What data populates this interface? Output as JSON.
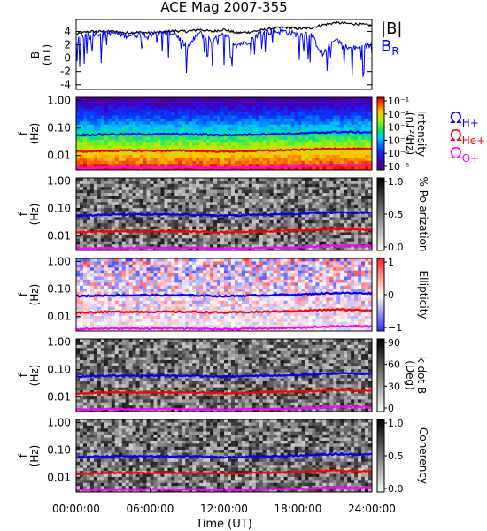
{
  "title": "ACE Mag 2007-355",
  "colors": {
    "B_total": "#000000",
    "B_R": "#0000ff",
    "cyclotron_H": "#0000ff",
    "cyclotron_He": "#ff0000",
    "cyclotron_O": "#ff00ff",
    "panel_border": "#000000"
  },
  "time_axis": {
    "label": "Time (UT)",
    "ticks": [
      "00:00:00",
      "06:00:00",
      "12:00:00",
      "18:00:00",
      "24:00:00"
    ],
    "range_hours": [
      0,
      24
    ]
  },
  "legend": {
    "B_total": "|B|",
    "B_R_main": "B",
    "B_R_sub": "R",
    "H_main": "Ω",
    "H_sub": "H+",
    "He_main": "Ω",
    "He_sub": "He+",
    "O_main": "Ω",
    "O_sub": "O+"
  },
  "freq_axis": {
    "label_main": "f",
    "label_unit": "(Hz)",
    "ticks": [
      "1.00",
      "0.10",
      "0.01"
    ],
    "log_range": [
      0.003,
      1.3
    ]
  },
  "chart_data": [
    {
      "type": "line",
      "name": "field",
      "ylabel_main": "B",
      "ylabel_unit": "(nT)",
      "ylim": [
        -4.7,
        5.8
      ],
      "yticks": [
        "4",
        "2",
        "0",
        "-2",
        "-4"
      ],
      "ytick_values": [
        4,
        2,
        0,
        -2,
        -4
      ],
      "x_hours": [
        0,
        1,
        2,
        3,
        4,
        5,
        6,
        7,
        8,
        9,
        10,
        11,
        12,
        13,
        14,
        15,
        16,
        17,
        18,
        19,
        20,
        21,
        22,
        23,
        24
      ],
      "series": [
        {
          "name": "|B|",
          "values": [
            3.6,
            4.0,
            4.0,
            4.0,
            3.8,
            3.9,
            3.8,
            3.9,
            4.1,
            4.0,
            4.3,
            4.0,
            4.3,
            3.8,
            3.9,
            4.2,
            4.5,
            4.6,
            4.4,
            4.5,
            5.0,
            5.3,
            5.2,
            5.1,
            4.9
          ]
        },
        {
          "name": "B_R",
          "values": [
            2.5,
            3.8,
            3.7,
            3.8,
            3.4,
            3.5,
            3.6,
            3.7,
            3.8,
            1.5,
            3.8,
            2.5,
            3.5,
            2.0,
            2.5,
            3.8,
            4.0,
            4.0,
            3.5,
            3.8,
            0.5,
            3.0,
            1.5,
            1.5,
            2.0
          ]
        }
      ]
    },
    {
      "type": "heatmap",
      "name": "spectrogram-intensity",
      "colorbar_label": "Intensity",
      "colorbar_unit": "(nT²/Hz)",
      "colorbar_ticks": [
        "10⁻¹",
        "10⁻²",
        "10⁻³",
        "10⁻⁴",
        "10⁻⁵",
        "10⁻⁶"
      ],
      "colormap": "rainbow"
    },
    {
      "type": "heatmap",
      "name": "spectrogram-polarization",
      "colorbar_label": "% Polarization",
      "colorbar_ticks": [
        "1.0",
        "0.5",
        "0.0"
      ],
      "colormap": "grayscale"
    },
    {
      "type": "heatmap",
      "name": "spectrogram-ellipticity",
      "colorbar_label": "Ellipticity",
      "colorbar_ticks": [
        "1",
        "0",
        "−1"
      ],
      "colormap": "blue-white-red"
    },
    {
      "type": "heatmap",
      "name": "spectrogram-kdotb",
      "colorbar_label": "k dot B",
      "colorbar_unit": "(Deg)",
      "colorbar_ticks": [
        "90",
        "60",
        "30",
        "0"
      ],
      "colormap": "grayscale"
    },
    {
      "type": "heatmap",
      "name": "spectrogram-coherency",
      "colorbar_label": "Coherency",
      "colorbar_ticks": [
        "1.0",
        "0.5",
        "0.0"
      ],
      "colormap": "grayscale"
    },
    {
      "type": "line",
      "name": "ion-cyclotron-frequencies",
      "x_hours": [
        0,
        3,
        6,
        9,
        12,
        15,
        18,
        21,
        24
      ],
      "series": [
        {
          "name": "H+",
          "values": [
            0.055,
            0.06,
            0.06,
            0.06,
            0.055,
            0.06,
            0.063,
            0.072,
            0.07
          ]
        },
        {
          "name": "He+",
          "values": [
            0.014,
            0.015,
            0.015,
            0.015,
            0.014,
            0.015,
            0.016,
            0.018,
            0.017
          ]
        },
        {
          "name": "O+",
          "values": [
            0.0035,
            0.0037,
            0.0037,
            0.0037,
            0.0035,
            0.0037,
            0.0039,
            0.0045,
            0.0044
          ]
        }
      ]
    }
  ]
}
